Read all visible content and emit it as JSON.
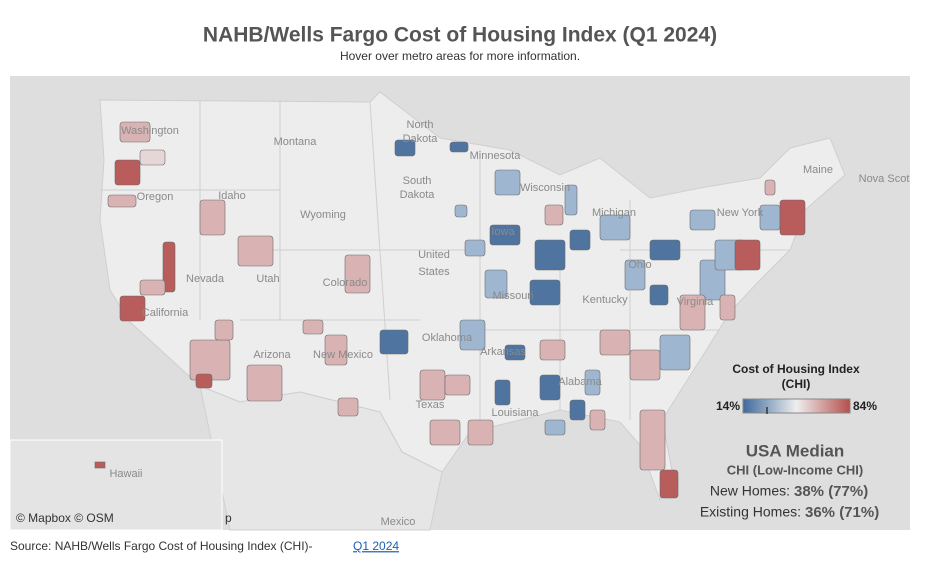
{
  "header": {
    "title": "NAHB/Wells Fargo Cost of Housing Index (Q1 2024)",
    "subtitle": "Hover over metro areas for more information."
  },
  "map": {
    "labels": [
      "Washington",
      "Montana",
      "North",
      "Dakota",
      "Minnesota",
      "South",
      "Dakota",
      "Wisconsin",
      "Oregon",
      "Idaho",
      "Wyoming",
      "Iowa",
      "Michigan",
      "New York",
      "Maine",
      "Nova Scot",
      "Nevada",
      "Utah",
      "Colorado",
      "United",
      "States",
      "Missouri",
      "Ohio",
      "Kentucky",
      "Virginia",
      "California",
      "Arizona",
      "New Mexico",
      "Oklahoma",
      "Arkansas",
      "Alabama",
      "Texas",
      "Louisiana",
      "Mexico",
      "Hawaii"
    ],
    "attribution": "© Mapbox © OSM",
    "cut_text": "p"
  },
  "legend": {
    "title": "Cost of Housing Index",
    "subtitle": "(CHI)",
    "min_label": "14%",
    "max_label": "84%"
  },
  "median": {
    "title": "USA Median",
    "subtitle": "CHI (Low-Income CHI)",
    "new_label": "New Homes:",
    "new_value": "38% (77%)",
    "existing_label": "Existing Homes:",
    "existing_value": "36% (71%)"
  },
  "footer": {
    "source": "Source: NAHB/Wells Fargo Cost of Housing Index (CHI)-",
    "link": "Q1 2024"
  }
}
